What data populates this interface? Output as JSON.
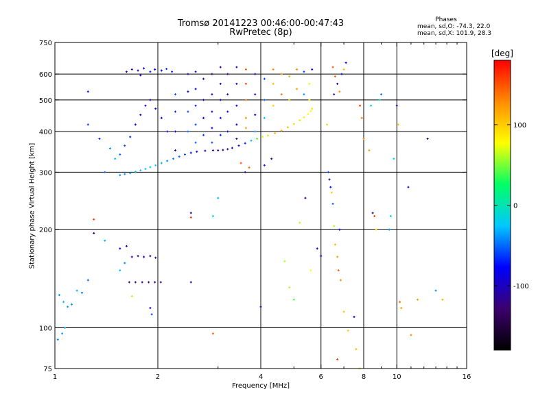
{
  "header": {
    "title_line1": "Tromsø 20141223 00:46:00-00:47:43",
    "title_line2": "RwPretec (8p)"
  },
  "phases": {
    "title": "Phases",
    "line_o": "mean, sd,O: -74.3, 22.0",
    "line_x": "mean, sd,X: 101.9, 28.3"
  },
  "colorbar": {
    "label": "[deg]",
    "ticks": [
      {
        "value": 100,
        "label": "100"
      },
      {
        "value": 0,
        "label": "0"
      },
      {
        "value": -100,
        "label": "-100"
      }
    ],
    "range": [
      -180,
      180
    ],
    "colors": [
      "#000000",
      "#3c006e",
      "#0000ff",
      "#00c8ff",
      "#00ff64",
      "#ffff00",
      "#ff8c00",
      "#ff0000"
    ]
  },
  "chart_data": {
    "type": "scatter",
    "title": "Tromsø 20141223 00:46:00-00:47:43",
    "subtitle": "RwPretec (8p)",
    "xlabel": "Frequency [MHz]",
    "ylabel": "Stationary phase Virtual Height [km]",
    "x_scale": "log",
    "y_scale": "log",
    "xlim": [
      1,
      16
    ],
    "ylim": [
      75,
      750
    ],
    "x_ticks": [
      1,
      2,
      4,
      6,
      8,
      10,
      16
    ],
    "x_tick_labels": [
      "1",
      "2",
      "4",
      "6",
      "8",
      "10",
      "16"
    ],
    "y_ticks": [
      75,
      100,
      200,
      300,
      400,
      500,
      600,
      750
    ],
    "y_tick_labels": [
      "75",
      "100",
      "200",
      "300",
      "400",
      "500",
      "600",
      "750"
    ],
    "grid": true,
    "gridlines_x": [
      2,
      4,
      6,
      8,
      10
    ],
    "gridlines_y": [
      100,
      200,
      300,
      400,
      500,
      600
    ],
    "series": [
      {
        "points": [
          [
            1.55,
            294,
            -40
          ],
          [
            1.6,
            296,
            -38
          ],
          [
            1.66,
            298,
            -35
          ],
          [
            1.72,
            301,
            -30
          ],
          [
            1.78,
            304,
            -28
          ],
          [
            1.84,
            307,
            -25
          ],
          [
            1.9,
            311,
            -22
          ],
          [
            1.97,
            315,
            -25
          ],
          [
            2.05,
            320,
            -30
          ],
          [
            2.13,
            325,
            -40
          ],
          [
            2.22,
            330,
            -45
          ],
          [
            2.31,
            335,
            -50
          ],
          [
            2.4,
            340,
            -60
          ],
          [
            2.5,
            344,
            -75
          ],
          [
            2.6,
            347,
            -85
          ],
          [
            2.75,
            349,
            -100
          ],
          [
            2.9,
            350,
            -110
          ],
          [
            3.0,
            350,
            -115
          ],
          [
            3.1,
            351,
            -115
          ],
          [
            3.2,
            353,
            -110
          ],
          [
            3.3,
            356,
            -100
          ],
          [
            3.45,
            362,
            -90
          ],
          [
            3.6,
            368,
            -70
          ],
          [
            3.75,
            375,
            -30
          ],
          [
            3.9,
            380,
            40
          ],
          [
            4.05,
            385,
            70
          ],
          [
            4.2,
            389,
            90
          ],
          [
            4.4,
            395,
            110
          ],
          [
            4.6,
            402,
            120
          ],
          [
            4.8,
            412,
            110
          ],
          [
            5.0,
            422,
            95
          ],
          [
            5.2,
            433,
            90
          ],
          [
            5.35,
            442,
            85
          ],
          [
            5.5,
            452,
            80
          ],
          [
            5.6,
            462,
            75
          ],
          [
            1.55,
            340,
            -50
          ],
          [
            1.6,
            362,
            -60
          ],
          [
            1.66,
            385,
            -70
          ],
          [
            1.72,
            420,
            -80
          ],
          [
            1.78,
            450,
            -90
          ],
          [
            1.84,
            480,
            -95
          ],
          [
            1.9,
            500,
            -100
          ],
          [
            1.97,
            470,
            -85
          ],
          [
            2.05,
            440,
            -75
          ],
          [
            2.13,
            400,
            -80
          ],
          [
            1.62,
            610,
            -90
          ],
          [
            1.68,
            620,
            -95
          ],
          [
            1.75,
            615,
            -100
          ],
          [
            1.82,
            625,
            -85
          ],
          [
            1.9,
            610,
            -70
          ],
          [
            1.96,
            620,
            -80
          ],
          [
            2.05,
            615,
            -75
          ],
          [
            2.12,
            622,
            -65
          ],
          [
            2.2,
            610,
            -70
          ],
          [
            1.78,
            595,
            -100
          ],
          [
            2.25,
            520,
            -60
          ],
          [
            2.25,
            460,
            -70
          ],
          [
            2.25,
            400,
            -80
          ],
          [
            2.25,
            350,
            -90
          ],
          [
            2.45,
            600,
            -110
          ],
          [
            2.45,
            530,
            -90
          ],
          [
            2.45,
            460,
            -60
          ],
          [
            2.45,
            400,
            -50
          ],
          [
            2.58,
            610,
            -100
          ],
          [
            2.58,
            540,
            -80
          ],
          [
            2.58,
            480,
            -70
          ],
          [
            2.58,
            420,
            -60
          ],
          [
            2.58,
            370,
            -55
          ],
          [
            2.72,
            580,
            -110
          ],
          [
            2.72,
            500,
            -90
          ],
          [
            2.72,
            440,
            -80
          ],
          [
            2.72,
            390,
            -65
          ],
          [
            2.88,
            600,
            -120
          ],
          [
            2.88,
            520,
            -100
          ],
          [
            2.88,
            460,
            -85
          ],
          [
            2.88,
            410,
            -75
          ],
          [
            2.88,
            370,
            -60
          ],
          [
            3.05,
            630,
            -125
          ],
          [
            3.05,
            560,
            -110
          ],
          [
            3.05,
            500,
            -95
          ],
          [
            3.05,
            440,
            -80
          ],
          [
            3.05,
            390,
            -70
          ],
          [
            3.2,
            600,
            -120
          ],
          [
            3.2,
            520,
            -105
          ],
          [
            3.2,
            460,
            -90
          ],
          [
            3.2,
            400,
            -85
          ],
          [
            3.4,
            630,
            -110
          ],
          [
            3.4,
            560,
            -100
          ],
          [
            3.4,
            480,
            -90
          ],
          [
            3.4,
            420,
            -100
          ],
          [
            3.4,
            380,
            -110
          ],
          [
            3.62,
            620,
            150
          ],
          [
            3.62,
            560,
            160
          ],
          [
            3.62,
            500,
            140
          ],
          [
            3.62,
            440,
            130
          ],
          [
            3.62,
            410,
            120
          ],
          [
            3.85,
            600,
            -100
          ],
          [
            3.85,
            520,
            -90
          ],
          [
            3.85,
            450,
            -80
          ],
          [
            3.85,
            400,
            -40
          ],
          [
            4.1,
            580,
            -60
          ],
          [
            4.1,
            500,
            -50
          ],
          [
            4.1,
            440,
            -30
          ],
          [
            4.35,
            620,
            130
          ],
          [
            4.35,
            560,
            110
          ],
          [
            4.35,
            480,
            100
          ],
          [
            4.6,
            600,
            120
          ],
          [
            4.6,
            520,
            140
          ],
          [
            4.85,
            590,
            110
          ],
          [
            4.85,
            500,
            100
          ],
          [
            5.1,
            620,
            130
          ],
          [
            5.1,
            540,
            120
          ],
          [
            5.35,
            610,
            -60
          ],
          [
            5.35,
            520,
            -40
          ],
          [
            5.55,
            560,
            70
          ],
          [
            5.55,
            500,
            80
          ],
          [
            5.65,
            620,
            -80
          ],
          [
            5.65,
            470,
            90
          ],
          [
            6.5,
            630,
            150
          ],
          [
            6.6,
            590,
            140
          ],
          [
            6.7,
            560,
            -100
          ],
          [
            6.8,
            530,
            130
          ],
          [
            6.9,
            600,
            -90
          ],
          [
            7.0,
            620,
            110
          ],
          [
            7.1,
            650,
            -80
          ],
          [
            6.55,
            520,
            -110
          ],
          [
            1.25,
            530,
            -70
          ],
          [
            1.25,
            420,
            -60
          ],
          [
            1.35,
            380,
            -70
          ],
          [
            1.45,
            355,
            -40
          ],
          [
            1.5,
            330,
            -30
          ],
          [
            1.4,
            300,
            -50
          ],
          [
            1.3,
            215,
            160
          ],
          [
            1.3,
            195,
            -120
          ],
          [
            1.4,
            185,
            -30
          ],
          [
            1.55,
            175,
            -90
          ],
          [
            1.62,
            178,
            -100
          ],
          [
            1.68,
            165,
            -110
          ],
          [
            1.75,
            166,
            -115
          ],
          [
            1.82,
            165,
            -105
          ],
          [
            1.9,
            166,
            -120
          ],
          [
            1.97,
            164,
            -110
          ],
          [
            1.6,
            158,
            -40
          ],
          [
            1.55,
            150,
            -30
          ],
          [
            1.65,
            138,
            -120
          ],
          [
            1.72,
            138,
            -125
          ],
          [
            1.8,
            138,
            -118
          ],
          [
            1.88,
            138,
            -122
          ],
          [
            1.96,
            138,
            -120
          ],
          [
            2.04,
            138,
            -115
          ],
          [
            1.68,
            125,
            60
          ],
          [
            1.9,
            115,
            -100
          ],
          [
            1.92,
            110,
            -60
          ],
          [
            1.03,
            126,
            -40
          ],
          [
            1.06,
            120,
            -30
          ],
          [
            1.09,
            116,
            -35
          ],
          [
            1.12,
            118,
            -40
          ],
          [
            1.16,
            130,
            -30
          ],
          [
            1.2,
            128,
            -45
          ],
          [
            1.25,
            140,
            -50
          ],
          [
            1.02,
            92,
            -45
          ],
          [
            1.05,
            96,
            -40
          ],
          [
            1.07,
            100,
            -35
          ],
          [
            2.5,
            138,
            -100
          ],
          [
            2.5,
            225,
            -110
          ],
          [
            2.5,
            218,
            160
          ],
          [
            2.9,
            96,
            150
          ],
          [
            4.0,
            116,
            -100
          ],
          [
            4.7,
            160,
            60
          ],
          [
            4.85,
            133,
            60
          ],
          [
            5.0,
            122,
            40
          ],
          [
            5.2,
            210,
            60
          ],
          [
            5.4,
            250,
            -120
          ],
          [
            5.6,
            150,
            80
          ],
          [
            5.85,
            175,
            -110
          ],
          [
            6.0,
            166,
            -100
          ],
          [
            6.25,
            420,
            100
          ],
          [
            6.3,
            300,
            -60
          ],
          [
            6.35,
            285,
            -100
          ],
          [
            6.4,
            270,
            -80
          ],
          [
            6.45,
            260,
            100
          ],
          [
            6.5,
            240,
            -50
          ],
          [
            6.55,
            205,
            60
          ],
          [
            6.6,
            180,
            110
          ],
          [
            6.7,
            165,
            120
          ],
          [
            6.75,
            150,
            150
          ],
          [
            6.7,
            80,
            160
          ],
          [
            6.8,
            200,
            -90
          ],
          [
            6.85,
            140,
            130
          ],
          [
            7.0,
            112,
            110
          ],
          [
            7.2,
            98,
            100
          ],
          [
            7.5,
            108,
            -100
          ],
          [
            7.6,
            86,
            110
          ],
          [
            7.8,
            75,
            100
          ],
          [
            7.8,
            480,
            160
          ],
          [
            7.9,
            440,
            140
          ],
          [
            8.0,
            380,
            130
          ],
          [
            8.3,
            350,
            120
          ],
          [
            8.5,
            225,
            -120
          ],
          [
            8.6,
            220,
            150
          ],
          [
            8.7,
            200,
            90
          ],
          [
            9.5,
            200,
            -40
          ],
          [
            9.6,
            220,
            -20
          ],
          [
            9.8,
            330,
            -10
          ],
          [
            10.0,
            480,
            -120
          ],
          [
            10.1,
            420,
            100
          ],
          [
            10.2,
            120,
            140
          ],
          [
            10.3,
            115,
            120
          ],
          [
            10.8,
            270,
            -110
          ],
          [
            11.0,
            95,
            130
          ],
          [
            11.5,
            122,
            120
          ],
          [
            12.3,
            380,
            -140
          ],
          [
            13.0,
            130,
            -40
          ],
          [
            13.6,
            122,
            110
          ],
          [
            3.5,
            320,
            150
          ],
          [
            3.6,
            300,
            -120
          ],
          [
            3.7,
            310,
            140
          ],
          [
            4.1,
            315,
            -100
          ],
          [
            4.3,
            330,
            -110
          ],
          [
            3.0,
            250,
            -30
          ],
          [
            2.9,
            220,
            -20
          ],
          [
            8.9,
            500,
            -10
          ],
          [
            9.0,
            520,
            -50
          ],
          [
            8.4,
            480,
            -20
          ]
        ]
      }
    ]
  }
}
